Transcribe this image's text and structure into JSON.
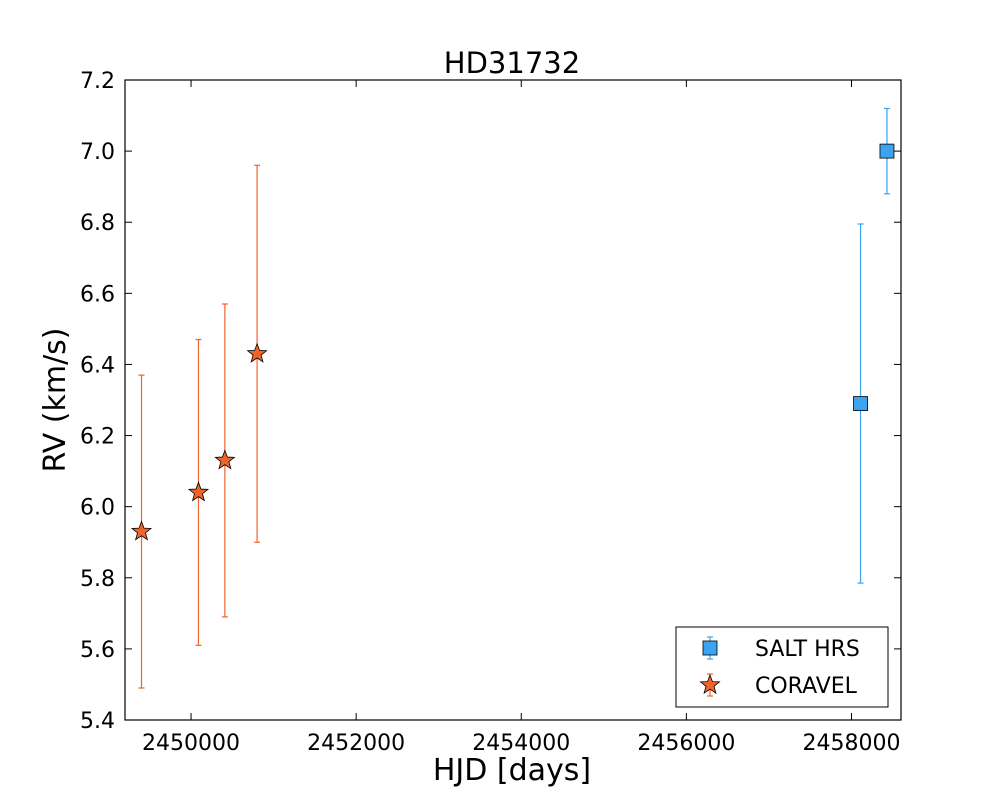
{
  "chart_data": {
    "type": "scatter",
    "title": "HD31732",
    "xlabel": "HJD [days]",
    "ylabel": "RV (km/s)",
    "xlim": [
      2449200,
      2458600
    ],
    "ylim": [
      5.4,
      7.2
    ],
    "x_ticks": [
      2450000,
      2452000,
      2454000,
      2456000,
      2458000
    ],
    "x_tick_labels": [
      "2450000",
      "2452000",
      "2454000",
      "2456000",
      "2458000"
    ],
    "y_ticks": [
      5.4,
      5.6,
      5.8,
      6.0,
      6.2,
      6.4,
      6.6,
      6.8,
      7.0,
      7.2
    ],
    "y_tick_labels": [
      "5.4",
      "5.6",
      "5.8",
      "6.0",
      "6.2",
      "6.4",
      "6.6",
      "6.8",
      "7.0",
      "7.2"
    ],
    "grid": false,
    "legend_position": "bottom-right",
    "series": [
      {
        "name": "SALT HRS",
        "marker": "square",
        "color": "#3ba3f0",
        "points": [
          {
            "x": 2458110,
            "y": 6.29,
            "err": 0.505
          },
          {
            "x": 2458430,
            "y": 7.0,
            "err": 0.12
          }
        ]
      },
      {
        "name": "CORAVEL",
        "marker": "star",
        "color": "#f0642a",
        "points": [
          {
            "x": 2449400,
            "y": 5.93,
            "err": 0.44
          },
          {
            "x": 2450090,
            "y": 6.04,
            "err": 0.43
          },
          {
            "x": 2450410,
            "y": 6.13,
            "err": 0.44
          },
          {
            "x": 2450800,
            "y": 6.43,
            "err": 0.53
          }
        ]
      }
    ]
  }
}
